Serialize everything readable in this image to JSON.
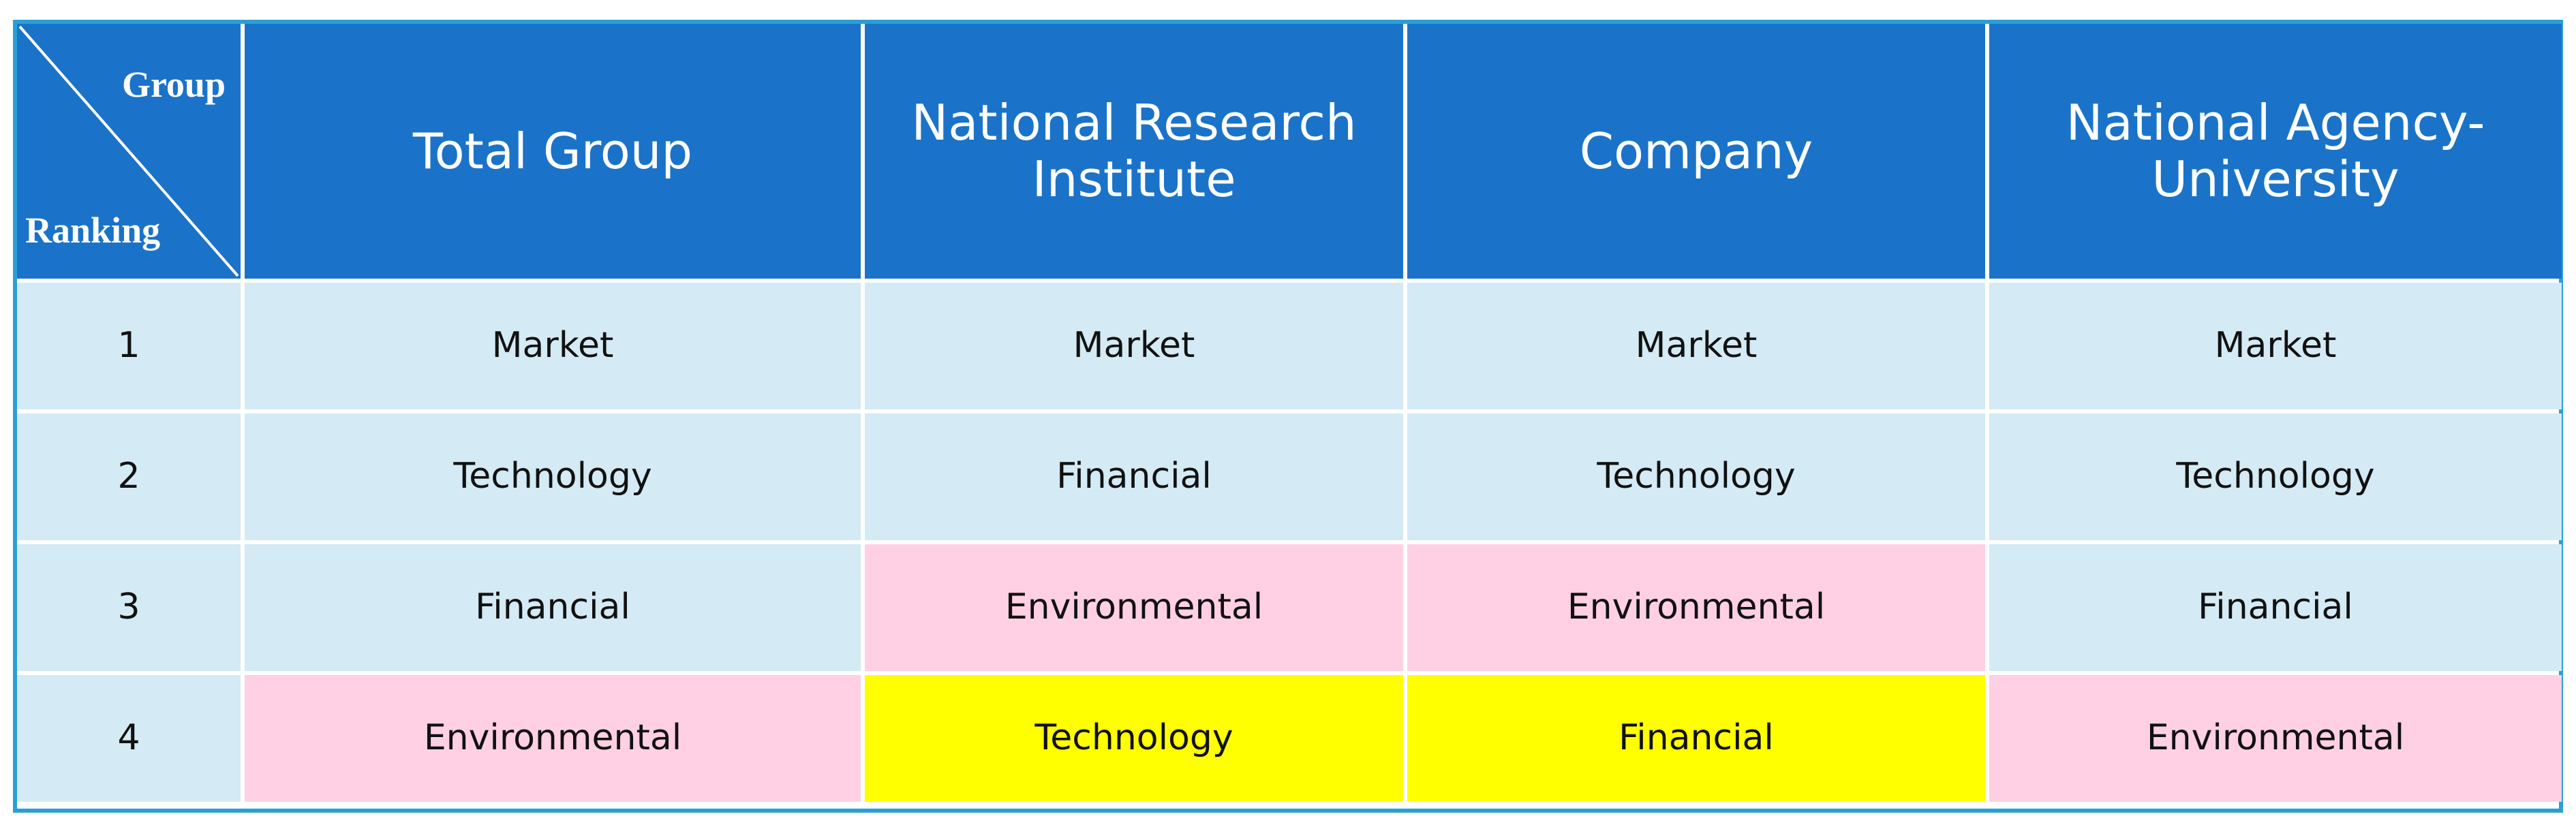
{
  "table": {
    "corner": {
      "top": "Group",
      "bottom": "Ranking"
    },
    "columns": [
      "Total Group",
      "National Research Institute",
      "Company",
      "National Agency-University"
    ],
    "rows": [
      [
        "1",
        "Market",
        "Market",
        "Market",
        "Market"
      ],
      [
        "2",
        "Technology",
        "Financial",
        "Technology",
        "Technology"
      ],
      [
        "3",
        "Financial",
        "Environmental",
        "Environmental",
        "Financial"
      ],
      [
        "4",
        "Environmental",
        "Technology",
        "Financial",
        "Environmental"
      ]
    ],
    "colors": {
      "header": "#1a73c9",
      "cell": "#d4eaf4",
      "pink": "#ffd0e3",
      "yellow": "#ffff00"
    },
    "cell_colors": [
      [
        "cell",
        "cell",
        "cell",
        "cell",
        "cell"
      ],
      [
        "cell",
        "cell",
        "cell",
        "cell",
        "cell"
      ],
      [
        "cell",
        "cell",
        "pink",
        "pink",
        "cell"
      ],
      [
        "cell",
        "pink",
        "yellow",
        "yellow",
        "pink"
      ]
    ]
  }
}
